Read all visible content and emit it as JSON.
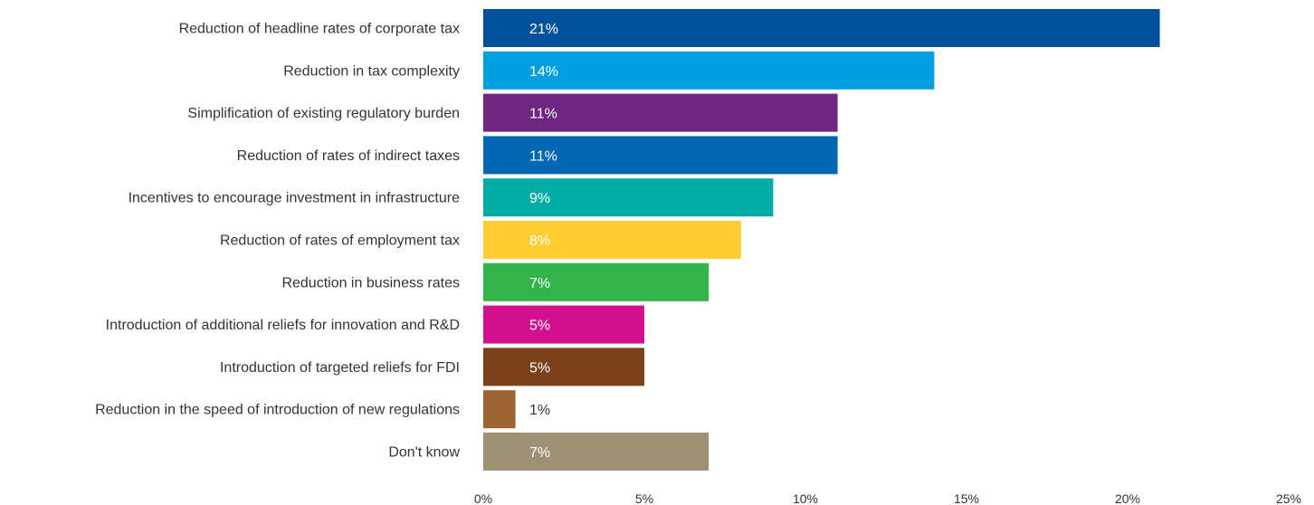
{
  "chart_data": {
    "type": "bar",
    "orientation": "horizontal",
    "title": "",
    "xlabel": "",
    "ylabel": "",
    "xlim": [
      0,
      25
    ],
    "grid": false,
    "legend": "none",
    "categories": [
      "Reduction of headline rates of corporate tax",
      "Reduction in tax complexity",
      "Simplification of existing regulatory burden",
      "Reduction of rates of indirect taxes",
      "Incentives to encourage investment in infrastructure",
      "Reduction of rates of employment tax",
      "Reduction in business rates",
      "Introduction of additional reliefs for innovation and R&D",
      "Introduction of targeted reliefs for FDI",
      "Reduction in the speed of introduction of new regulations",
      "Don't know"
    ],
    "values": [
      21,
      14,
      11,
      11,
      9,
      8,
      7,
      5,
      5,
      1,
      7
    ],
    "data_labels": [
      "21%",
      "14%",
      "11%",
      "11%",
      "9%",
      "8%",
      "7%",
      "5%",
      "5%",
      "1%",
      "7%"
    ],
    "colors": [
      "#00519C",
      "#009FDF",
      "#6E2680",
      "#0067B4",
      "#00ACA4",
      "#FDCD31",
      "#33B44B",
      "#D20F8D",
      "#7A411A",
      "#9C6430",
      "#9D9174"
    ],
    "label_colors": [
      "#FFFFFF",
      "#FFFFFF",
      "#FFFFFF",
      "#FFFFFF",
      "#FFFFFF",
      "#FFFFFF",
      "#FFFFFF",
      "#FFFFFF",
      "#FFFFFF",
      "#333333",
      "#FFFFFF"
    ],
    "xticks": [
      0,
      5,
      10,
      15,
      20,
      25
    ],
    "xtick_labels": [
      "0%",
      "5%",
      "10%",
      "15%",
      "20%",
      "25%"
    ]
  }
}
